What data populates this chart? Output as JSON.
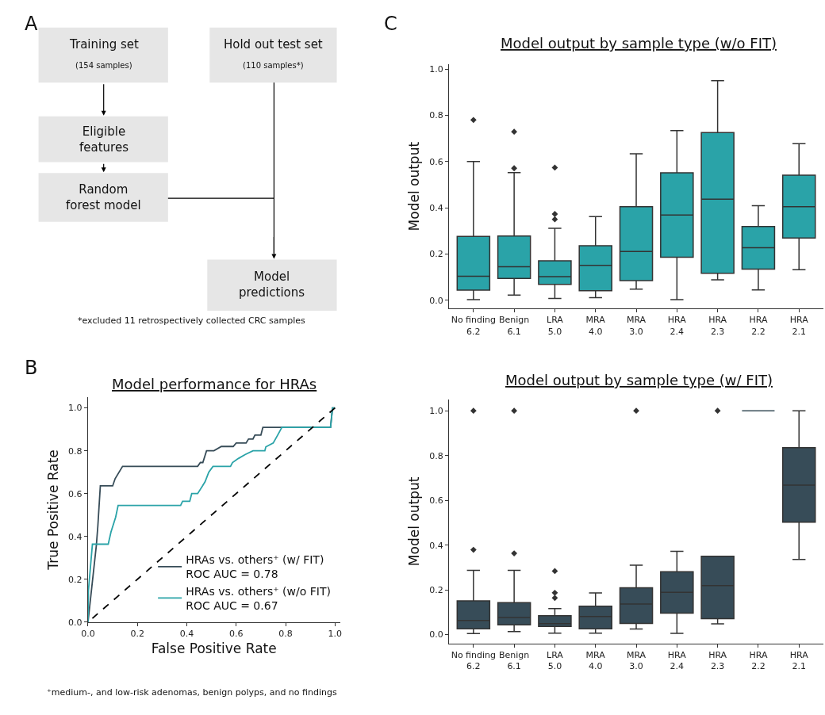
{
  "chart_data": [
    {
      "type": "other",
      "annotations": [
        "A",
        "Training set",
        "(154 samples)",
        "Eligible\nfeatures",
        "Random\nforest model",
        "Hold out test set",
        "(110 samples*)",
        "Model\npredictions",
        "*excluded 11 retrospectively collected CRC samples"
      ]
    },
    {
      "type": "line",
      "title": "Model performance for HRAs",
      "xlabel": "False Positive Rate",
      "ylabel": "True Positive Rate",
      "xlim": [
        0,
        1.02
      ],
      "ylim": [
        0,
        1.05
      ],
      "xticks": [
        {
          "value": 0,
          "label": "0.0"
        },
        {
          "value": 0.2,
          "label": "0.2"
        },
        {
          "value": 0.4,
          "label": "0.4"
        },
        {
          "value": 0.6,
          "label": "0.6"
        },
        {
          "value": 0.8,
          "label": "0.8"
        },
        {
          "value": 1,
          "label": "1.0"
        }
      ],
      "yticks": [
        {
          "value": 0,
          "label": "0.0"
        },
        {
          "value": 0.2,
          "label": "0.2"
        },
        {
          "value": 0.4,
          "label": "0.4"
        },
        {
          "value": 0.6,
          "label": "0.6"
        },
        {
          "value": 0.8,
          "label": "0.8"
        },
        {
          "value": 1,
          "label": "1.0"
        }
      ],
      "legend": "bottom right",
      "series": [
        {
          "name": "HRAs vs. others⁺ (w/ FIT)\nROC AUC = 0.78",
          "color": "#374c58",
          "x": [
            0,
            0.034,
            0.04,
            0.05,
            0.1,
            0.11,
            0.14,
            0.444,
            0.455,
            0.465,
            0.48,
            0.51,
            0.54,
            0.588,
            0.6,
            0.64,
            0.65,
            0.668,
            0.676,
            0.7,
            0.708,
            0.982,
            0.99,
            1
          ],
          "values": [
            0,
            0.36,
            0.45,
            0.636,
            0.636,
            0.67,
            0.727,
            0.727,
            0.745,
            0.745,
            0.8,
            0.8,
            0.82,
            0.82,
            0.836,
            0.836,
            0.855,
            0.855,
            0.873,
            0.873,
            0.909,
            0.909,
            1,
            1
          ]
        },
        {
          "name": "HRAs vs. others⁺ (w/o FIT)\nROC AUC = 0.67",
          "color": "#2aa3a8",
          "x": [
            0,
            0.002,
            0.018,
            0.082,
            0.093,
            0.112,
            0.122,
            0.375,
            0.383,
            0.412,
            0.42,
            0.444,
            0.474,
            0.489,
            0.506,
            0.577,
            0.585,
            0.609,
            0.636,
            0.668,
            0.716,
            0.72,
            0.75,
            0.768,
            0.785,
            0.982,
            0.99,
            1
          ],
          "values": [
            0,
            0.15,
            0.364,
            0.364,
            0.42,
            0.49,
            0.545,
            0.545,
            0.564,
            0.564,
            0.6,
            0.6,
            0.655,
            0.7,
            0.727,
            0.727,
            0.745,
            0.764,
            0.782,
            0.8,
            0.8,
            0.818,
            0.836,
            0.873,
            0.909,
            0.909,
            1,
            1
          ]
        },
        {
          "color": "#000000",
          "line_style": "dashed",
          "x": [
            0,
            1
          ],
          "values": [
            0,
            1
          ]
        }
      ],
      "annotations": [
        "B",
        "⁺medium-, and low-risk adenomas, benign polyps, and no findings"
      ]
    },
    {
      "type": "box",
      "title": "Model output by sample type (w/o FIT)",
      "ylabel": "Model output",
      "ylim": [
        -0.035,
        1.02
      ],
      "yticks": [
        {
          "value": 0,
          "label": "0.0"
        },
        {
          "value": 0.2,
          "label": "0.2"
        },
        {
          "value": 0.4,
          "label": "0.4"
        },
        {
          "value": 0.6,
          "label": "0.6"
        },
        {
          "value": 0.8,
          "label": "0.8"
        },
        {
          "value": 1,
          "label": "1.0"
        }
      ],
      "categories": [
        "No finding\n6.2",
        "Benign\n6.1",
        "LRA\n5.0",
        "MRA\n4.0",
        "MRA\n3.0",
        "HRA\n2.4",
        "HRA\n2.3",
        "HRA\n2.2",
        "HRA\n2.1"
      ],
      "color": "#2aa3a8",
      "marker": "diamond",
      "boxes": [
        {
          "low": 0.003,
          "q1": 0.044,
          "median": 0.104,
          "q3": 0.276,
          "high": 0.6,
          "outliers": [
            0.78
          ]
        },
        {
          "low": 0.022,
          "q1": 0.094,
          "median": 0.145,
          "q3": 0.278,
          "high": 0.552,
          "outliers": [
            0.571,
            0.729
          ]
        },
        {
          "low": 0.008,
          "q1": 0.069,
          "median": 0.102,
          "q3": 0.171,
          "high": 0.311,
          "outliers": [
            0.35,
            0.373,
            0.574
          ]
        },
        {
          "low": 0.011,
          "q1": 0.041,
          "median": 0.151,
          "q3": 0.236,
          "high": 0.362
        },
        {
          "low": 0.048,
          "q1": 0.085,
          "median": 0.211,
          "q3": 0.405,
          "high": 0.634
        },
        {
          "low": 0.003,
          "q1": 0.186,
          "median": 0.369,
          "q3": 0.551,
          "high": 0.734
        },
        {
          "low": 0.088,
          "q1": 0.117,
          "median": 0.437,
          "q3": 0.725,
          "high": 0.95
        },
        {
          "low": 0.045,
          "q1": 0.135,
          "median": 0.227,
          "q3": 0.319,
          "high": 0.409
        },
        {
          "low": 0.132,
          "q1": 0.269,
          "median": 0.405,
          "q3": 0.541,
          "high": 0.677
        }
      ],
      "annotations": [
        "C"
      ]
    },
    {
      "type": "box",
      "title": "Model output by sample type (w/ FIT)",
      "ylabel": "Model output",
      "ylim": [
        -0.039,
        1.05
      ],
      "yticks": [
        {
          "value": 0,
          "label": "0.0"
        },
        {
          "value": 0.2,
          "label": "0.2"
        },
        {
          "value": 0.4,
          "label": "0.4"
        },
        {
          "value": 0.6,
          "label": "0.6"
        },
        {
          "value": 0.8,
          "label": "0.8"
        },
        {
          "value": 1,
          "label": "1.0"
        }
      ],
      "categories": [
        "No finding\n6.2",
        "Benign\n6.1",
        "LRA\n5.0",
        "MRA\n4.0",
        "MRA\n3.0",
        "HRA\n2.4",
        "HRA\n2.3",
        "HRA\n2.2",
        "HRA\n2.1"
      ],
      "color": "#374c58",
      "marker": "diamond",
      "boxes": [
        {
          "low": 0.005,
          "q1": 0.026,
          "median": 0.063,
          "q3": 0.151,
          "high": 0.287,
          "outliers": [
            0.379,
            1.0
          ]
        },
        {
          "low": 0.014,
          "q1": 0.044,
          "median": 0.077,
          "q3": 0.143,
          "high": 0.287,
          "outliers": [
            0.363,
            1.0
          ]
        },
        {
          "low": 0.007,
          "q1": 0.037,
          "median": 0.049,
          "q3": 0.085,
          "high": 0.116,
          "outliers": [
            0.164,
            0.187,
            0.284
          ]
        },
        {
          "low": 0.007,
          "q1": 0.026,
          "median": 0.081,
          "q3": 0.127,
          "high": 0.186
        },
        {
          "low": 0.025,
          "q1": 0.05,
          "median": 0.137,
          "q3": 0.209,
          "high": 0.31,
          "outliers": [
            1.0
          ]
        },
        {
          "low": 0.006,
          "q1": 0.096,
          "median": 0.189,
          "q3": 0.281,
          "high": 0.372
        },
        {
          "low": 0.048,
          "q1": 0.071,
          "median": 0.219,
          "q3": 0.35,
          "high": 0.35,
          "outliers": [
            1.0
          ]
        },
        {
          "low": 1.0,
          "q1": 1.0,
          "median": 1.0,
          "q3": 1.0,
          "high": 1.0
        },
        {
          "low": 0.336,
          "q1": 0.502,
          "median": 0.668,
          "q3": 0.835,
          "high": 1.0
        }
      ]
    }
  ]
}
